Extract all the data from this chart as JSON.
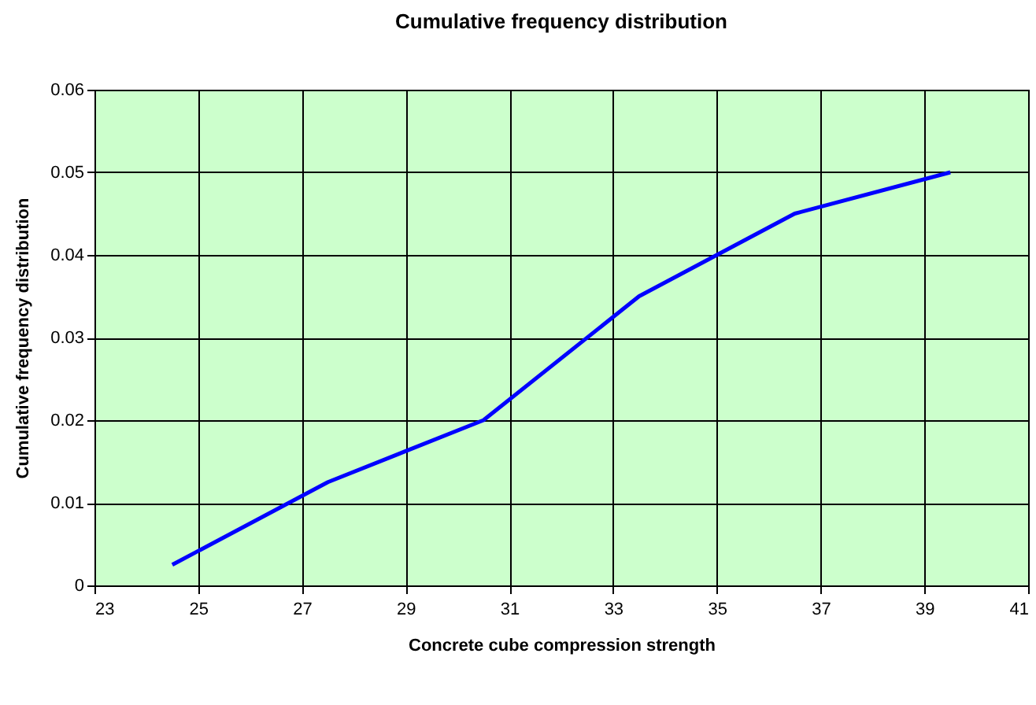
{
  "chart_data": {
    "type": "line",
    "title": "Cumulative frequency distribution",
    "xlabel": "Concrete cube compression strength",
    "ylabel": "Cumulative frequency distribution",
    "x": [
      24.5,
      27.5,
      30.5,
      33.5,
      36.5,
      39.5
    ],
    "series": [
      {
        "color": "#0000ff",
        "values": [
          0.0025,
          0.0125,
          0.02,
          0.035,
          0.045,
          0.05
        ]
      }
    ],
    "xlim": [
      23,
      41
    ],
    "xticks": [
      23,
      25,
      27,
      29,
      31,
      33,
      35,
      37,
      39,
      41
    ],
    "ylim": [
      0,
      0.06
    ],
    "yticks": [
      0,
      0.01,
      0.02,
      0.03,
      0.04,
      0.05,
      0.06
    ],
    "grid": true,
    "marker": "none",
    "line_style": "solid",
    "legend": false
  }
}
